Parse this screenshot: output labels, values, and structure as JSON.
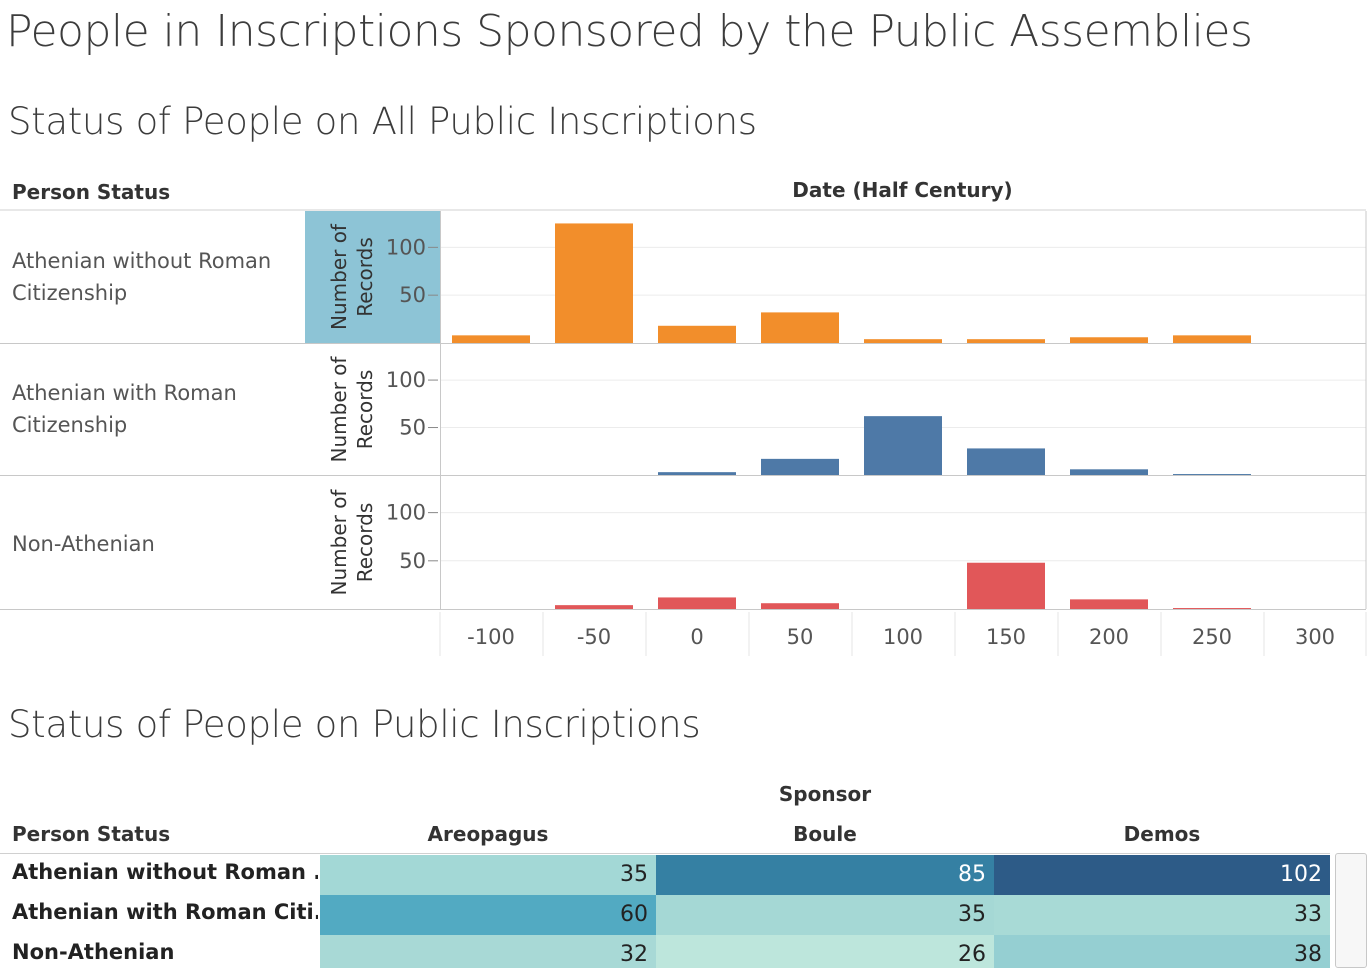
{
  "dashboard": {
    "title": "People in Inscriptions Sponsored by the Public Assemblies"
  },
  "top_chart": {
    "title": "Status of People on All Public Inscriptions",
    "row_header": "Person Status",
    "col_header": "Date (Half Century)",
    "y_axis_title_line1": "Number of",
    "y_axis_title_line2": "Records"
  },
  "bottom_table": {
    "title": "Status of People on Public Inscriptions",
    "row_header": "Person Status",
    "col_group_header": "Sponsor"
  },
  "chart_data": [
    {
      "type": "bar",
      "title": "Status of People on All Public Inscriptions",
      "xlabel": "Date (Half Century)",
      "ylabel": "Number of Records",
      "categories": [
        "-100",
        "-50",
        "0",
        "50",
        "100",
        "150",
        "200",
        "250",
        "300"
      ],
      "ylim": [
        0,
        138
      ],
      "yticks": [
        "50",
        "100"
      ],
      "grid": true,
      "series": [
        {
          "name": "Athenian without Roman Citizenship",
          "color": "#F28E2B",
          "values": [
            8,
            125,
            18,
            32,
            4,
            4,
            6,
            8,
            0
          ]
        },
        {
          "name": "Athenian with Roman Citizenship",
          "color": "#4E79A7",
          "values": [
            0,
            0,
            3,
            17,
            62,
            28,
            6,
            1,
            0
          ]
        },
        {
          "name": "Non-Athenian",
          "color": "#E15759",
          "values": [
            0,
            4,
            12,
            6,
            0,
            48,
            10,
            1,
            0
          ]
        }
      ]
    },
    {
      "type": "heatmap",
      "title": "Status of People on Public Inscriptions",
      "xlabel": "Sponsor",
      "ylabel": "Person Status",
      "columns": [
        "Areopagus",
        "Boule",
        "Demos"
      ],
      "rows": [
        "Athenian without Roman ..",
        "Athenian with Roman Citi..",
        "Non-Athenian"
      ],
      "values": [
        [
          35,
          85,
          102
        ],
        [
          60,
          35,
          33
        ],
        [
          32,
          26,
          38
        ]
      ],
      "colors": [
        [
          "#a3d8d6",
          "#3580a3",
          "#2d5b87"
        ],
        [
          "#52aac2",
          "#a5d8d5",
          "#a8dad6"
        ],
        [
          "#a8d9d6",
          "#bde6dc",
          "#95cfd2"
        ]
      ],
      "text_colors": [
        [
          "#222222",
          "#ffffff",
          "#ffffff"
        ],
        [
          "#222222",
          "#222222",
          "#222222"
        ],
        [
          "#222222",
          "#222222",
          "#222222"
        ]
      ]
    }
  ]
}
